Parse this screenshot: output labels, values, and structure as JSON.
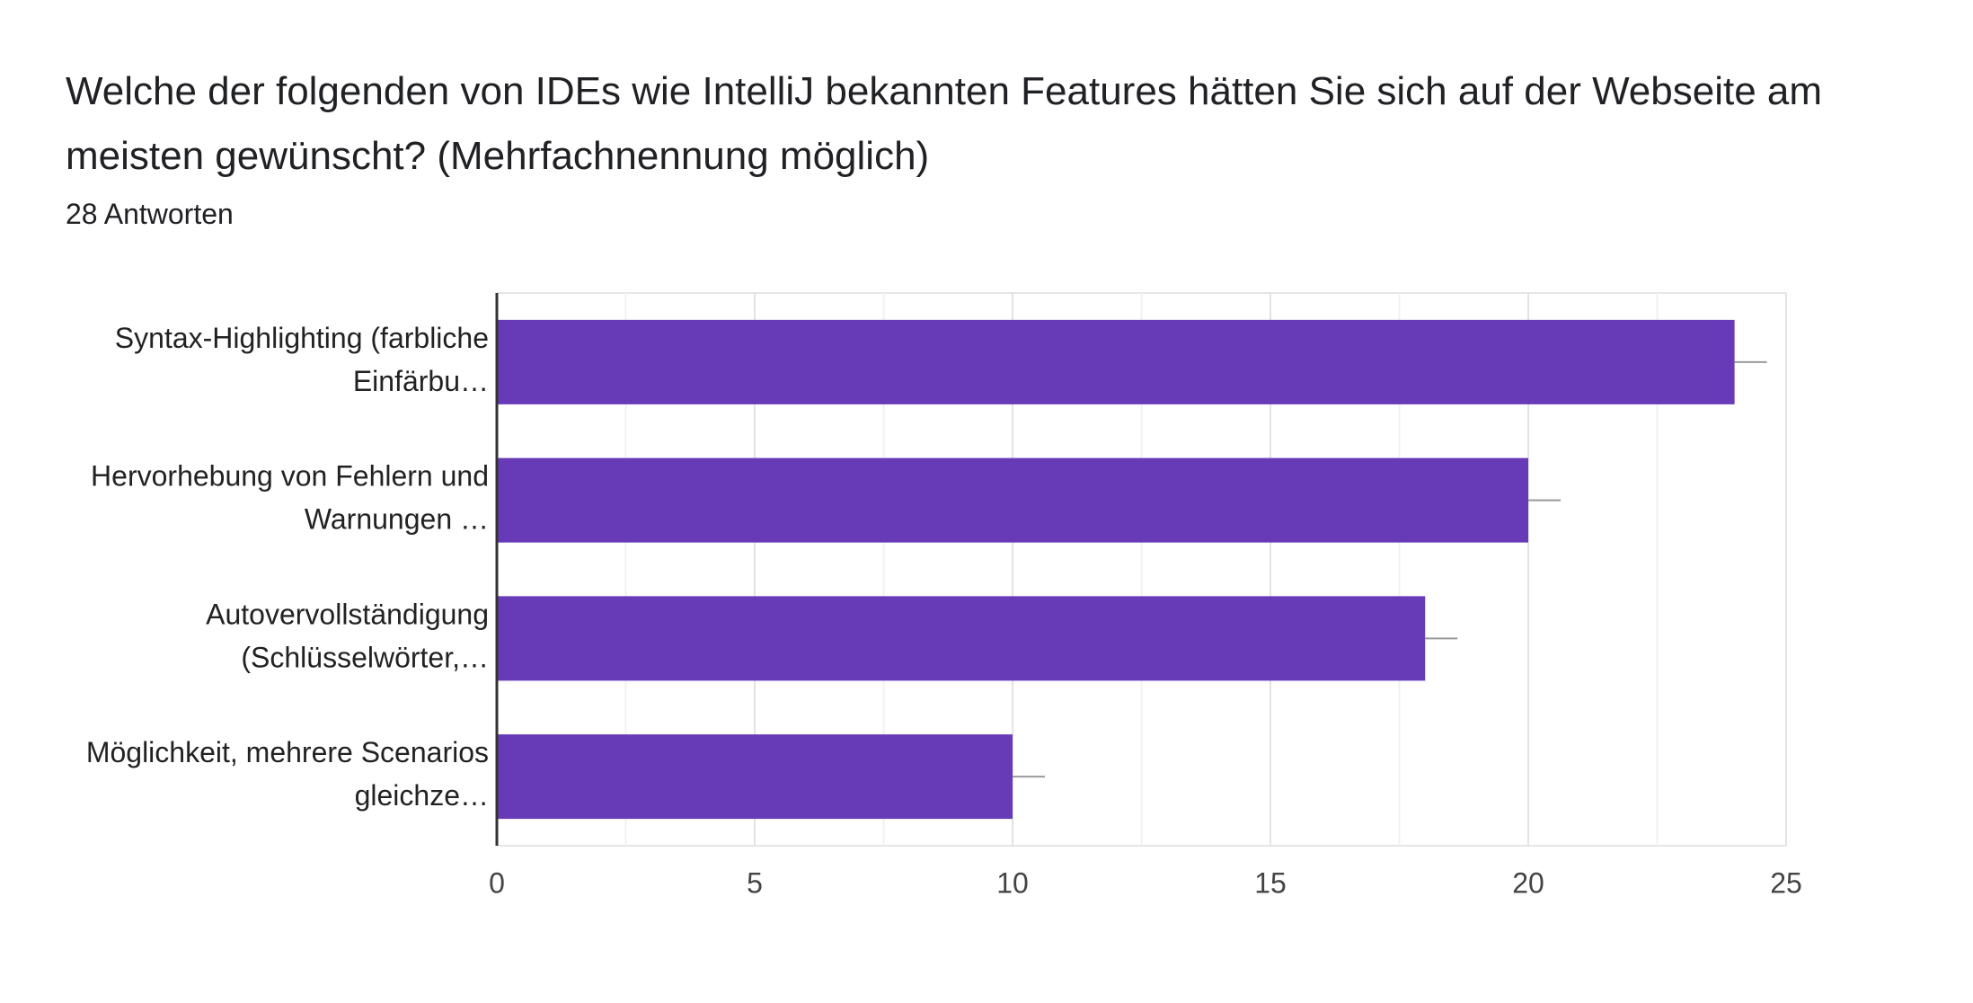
{
  "header": {
    "title": "Welche der folgenden von IDEs wie IntelliJ bekannten Features hätten Sie sich auf der Webseite am meisten gewünscht? (Mehrfachnennung möglich)",
    "subtitle": "28 Antworten"
  },
  "colors": {
    "bar": "#673AB7",
    "grid": "#e6e6e6",
    "axis": "#333333",
    "whisker": "#999999",
    "text": "#222222"
  },
  "chart_data": {
    "type": "bar",
    "orientation": "horizontal",
    "categories": [
      [
        "Syntax-Highlighting (farbliche",
        "Einfärbu…"
      ],
      [
        "Hervorhebung von Fehlern und",
        "Warnungen …"
      ],
      [
        "Autovervollständigung",
        "(Schlüsselwörter,…"
      ],
      [
        "Möglichkeit, mehrere Scenarios",
        "gleichze…"
      ]
    ],
    "values": [
      24,
      20,
      18,
      10
    ],
    "xlim": [
      0,
      25
    ],
    "xticks": [
      "0",
      "5",
      "10",
      "15",
      "20",
      "25"
    ],
    "grid": true,
    "legend": "none"
  }
}
